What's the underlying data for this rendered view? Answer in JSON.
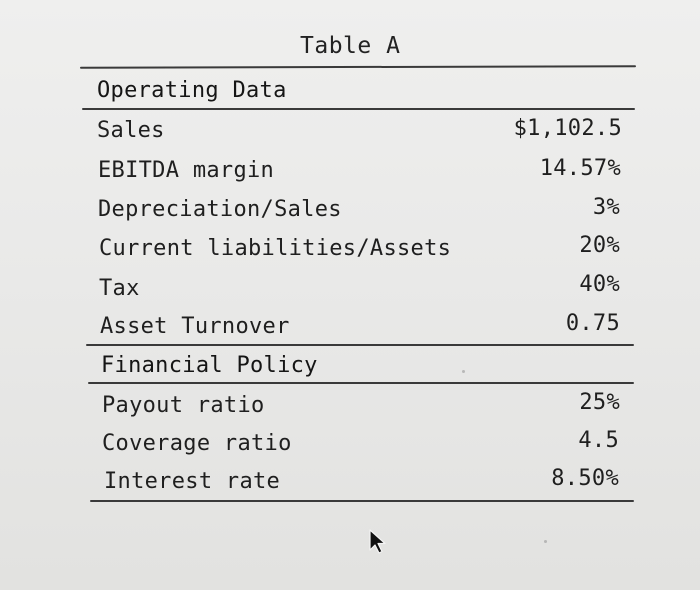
{
  "table": {
    "title": "Table A",
    "sections": {
      "operating": {
        "heading": "Operating Data",
        "rows": [
          {
            "label": "Sales",
            "value": "$1,102.5"
          },
          {
            "label": "EBITDA margin",
            "value": "14.57%"
          },
          {
            "label": "Depreciation/Sales",
            "value": "3%"
          },
          {
            "label": "Current liabilities/Assets",
            "value": "20%"
          },
          {
            "label": "Tax",
            "value": "40%"
          },
          {
            "label": "Asset Turnover",
            "value": "0.75"
          }
        ]
      },
      "financial": {
        "heading": "Financial Policy",
        "rows": [
          {
            "label": "Payout ratio",
            "value": "25%"
          },
          {
            "label": "Coverage ratio",
            "value": "4.5"
          },
          {
            "label": "Interest rate",
            "value": "8.50%"
          }
        ]
      }
    }
  },
  "cursor_icon": "arrow-cursor-icon"
}
